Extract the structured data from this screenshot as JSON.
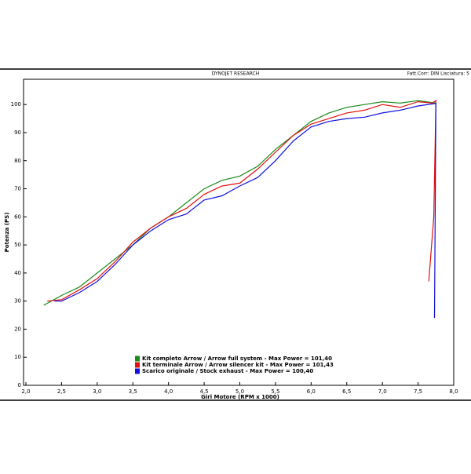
{
  "chart_data": {
    "type": "line",
    "header": "DYNOJET RESEARCH",
    "header_right": "Fatt.Corr: DIN  Lisciatura: 5",
    "x_label": "Giri Motore (RPM x 1000)",
    "y_label": "Potenza (PS)",
    "xlim": [
      2.0,
      8.0
    ],
    "ylim": [
      0,
      109
    ],
    "xticks": [
      {
        "value": 2.0,
        "label": "2,0"
      },
      {
        "value": 2.5,
        "label": "2,5"
      },
      {
        "value": 3.0,
        "label": "3,0"
      },
      {
        "value": 3.5,
        "label": "3,5"
      },
      {
        "value": 4.0,
        "label": "4,0"
      },
      {
        "value": 4.5,
        "label": "4,5"
      },
      {
        "value": 5.0,
        "label": "5,0"
      },
      {
        "value": 5.5,
        "label": "5,5"
      },
      {
        "value": 6.0,
        "label": "6,0"
      },
      {
        "value": 6.5,
        "label": "6,5"
      },
      {
        "value": 7.0,
        "label": "7,0"
      },
      {
        "value": 7.5,
        "label": "7,5"
      },
      {
        "value": 8.0,
        "label": "8,0"
      }
    ],
    "yticks": [
      0,
      10,
      20,
      30,
      40,
      50,
      60,
      70,
      80,
      90,
      100
    ],
    "legend": "lower-left",
    "series": [
      {
        "name": "Kit completo Arrow / Arrow full system - Max Power = 101,40",
        "color": "#1a8a1a",
        "x": [
          2.25,
          2.5,
          2.75,
          3.0,
          3.25,
          3.5,
          3.75,
          4.0,
          4.25,
          4.5,
          4.75,
          5.0,
          5.25,
          5.5,
          5.75,
          6.0,
          6.25,
          6.5,
          6.75,
          7.0,
          7.25,
          7.5,
          7.75
        ],
        "values": [
          28.5,
          32,
          35,
          40,
          45,
          50,
          56,
          60,
          65,
          70,
          73,
          74.5,
          78,
          84,
          89,
          94,
          97,
          99,
          100,
          101,
          100.5,
          101.4,
          100.5
        ]
      },
      {
        "name": "Kit terminale Arrow / Arrow silencer kit - Max Power = 101,43",
        "color": "#e01010",
        "x": [
          2.3,
          2.5,
          2.75,
          3.0,
          3.25,
          3.5,
          3.75,
          4.0,
          4.25,
          4.5,
          4.75,
          5.0,
          5.25,
          5.5,
          5.75,
          6.0,
          6.25,
          6.5,
          6.75,
          7.0,
          7.25,
          7.5,
          7.7,
          7.75,
          7.72,
          7.65
        ],
        "values": [
          30,
          30.5,
          34,
          38,
          44,
          51,
          56,
          60,
          63,
          68,
          71,
          72,
          77,
          83,
          89,
          93,
          95,
          97,
          98,
          100,
          99,
          101,
          100.5,
          101.43,
          60,
          37
        ]
      },
      {
        "name": "Scarico originale / Stock exhaust - Max Power = 100,40",
        "color": "#1010e0",
        "x": [
          2.4,
          2.5,
          2.75,
          3.0,
          3.25,
          3.5,
          3.75,
          4.0,
          4.25,
          4.5,
          4.75,
          5.0,
          5.25,
          5.5,
          5.75,
          6.0,
          6.25,
          6.5,
          6.75,
          7.0,
          7.25,
          7.5,
          7.75,
          7.73
        ],
        "values": [
          30,
          30,
          33,
          37,
          43,
          50,
          55,
          59,
          61,
          66,
          67.5,
          71,
          74,
          80,
          87,
          92,
          94,
          95,
          95.5,
          97,
          98,
          99.5,
          100.4,
          24
        ]
      }
    ]
  }
}
